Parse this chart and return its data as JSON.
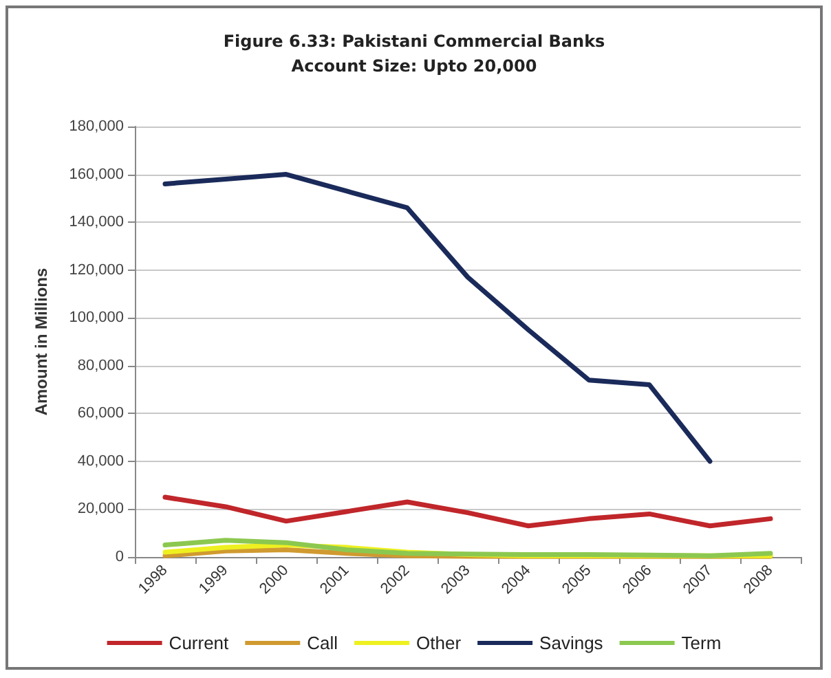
{
  "chart_data": {
    "type": "line",
    "title": "Figure 6.33: Pakistani Commercial Banks\nAccount Size: Upto 20,000",
    "ylabel": "Amount in Millions",
    "categories": [
      "1998",
      "1999",
      "2000",
      "2001",
      "2002",
      "2003",
      "2004",
      "2005",
      "2006",
      "2007",
      "2008"
    ],
    "series": [
      {
        "name": "Current",
        "color": "#c0262a",
        "values": [
          25000,
          21000,
          15000,
          19000,
          23000,
          18500,
          13000,
          16000,
          18000,
          13000,
          16000
        ]
      },
      {
        "name": "Call",
        "color": "#d09a30",
        "values": [
          500,
          2500,
          3000,
          1500,
          500,
          300,
          200,
          200,
          200,
          200,
          200
        ]
      },
      {
        "name": "Other",
        "color": "#eef020",
        "values": [
          2000,
          4000,
          5000,
          4000,
          2000,
          1000,
          500,
          500,
          500,
          500,
          500
        ]
      },
      {
        "name": "Savings",
        "color": "#1a2a5a",
        "values": [
          156000,
          158000,
          160000,
          153000,
          146000,
          117000,
          95000,
          74000,
          72000,
          40000,
          null
        ]
      },
      {
        "name": "Term",
        "color": "#8cc850",
        "values": [
          5000,
          7000,
          6000,
          3000,
          1500,
          1200,
          1000,
          1000,
          800,
          500,
          1500
        ]
      }
    ],
    "ylim": [
      0,
      180000
    ],
    "yticks": [
      0,
      {
        "value": 20000,
        "label": "20,000"
      },
      {
        "value": 40000,
        "label": "40,000"
      },
      {
        "value": 60000,
        "label": "60,000"
      },
      {
        "value": 80000,
        "label": "80,000"
      },
      {
        "value": 100000,
        "label": "100,000"
      },
      {
        "value": 120000,
        "label": "120,000"
      },
      {
        "value": 140000,
        "label": "140,000"
      },
      {
        "value": 160000,
        "label": "160,000"
      },
      {
        "value": 180000,
        "label": "180,000"
      }
    ],
    "grid": "y",
    "legend": "bottom",
    "marker": "none",
    "line_style": "solid"
  }
}
